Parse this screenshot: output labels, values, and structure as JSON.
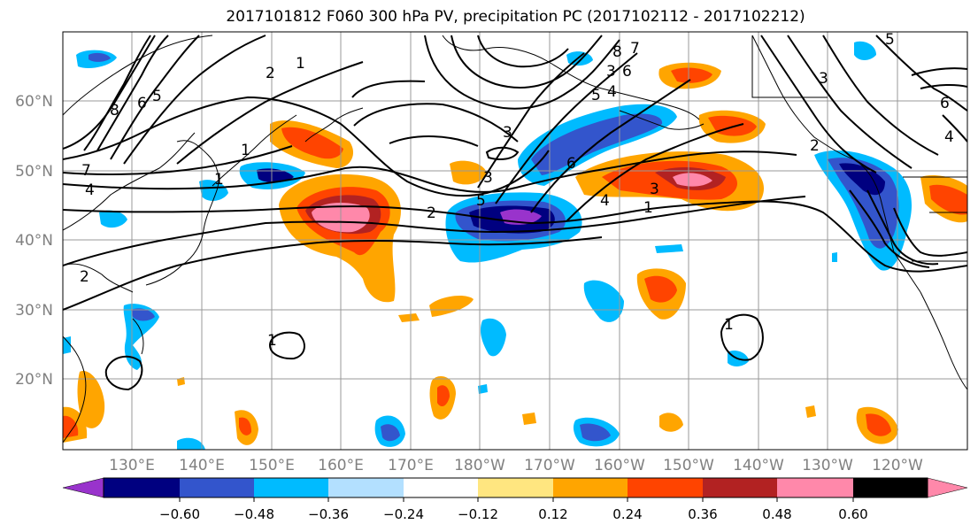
{
  "title": "2017101812 F060 300 hPa PV, precipitation PC (2017102112 - 2017102212)",
  "lat_labels": [
    "60°N",
    "50°N",
    "40°N",
    "30°N",
    "20°N"
  ],
  "lon_labels": [
    "130°E",
    "140°E",
    "150°E",
    "160°E",
    "170°E",
    "180°W",
    "170°W",
    "160°W",
    "150°W",
    "140°W",
    "130°W",
    "120°W"
  ],
  "colorbar": {
    "tick_labels": [
      "−0.60",
      "−0.48",
      "−0.36",
      "−0.24",
      "−0.12",
      "0.12",
      "0.24",
      "0.36",
      "0.48",
      "0.60"
    ],
    "colors": [
      "#9933cc",
      "#000080",
      "#3355cc",
      "#00bbff",
      "#b3e0ff",
      "#ffffff",
      "#ffe680",
      "#ffa500",
      "#ff4400",
      "#b22222",
      "#ff88aa"
    ]
  },
  "contour_labels": [
    "1",
    "2",
    "1",
    "8",
    "6",
    "5",
    "7",
    "4",
    "1",
    "2",
    "7",
    "8",
    "3",
    "6",
    "5",
    "4",
    "3",
    "3",
    "5",
    "2",
    "6",
    "4",
    "3",
    "1",
    "1",
    "1",
    "3",
    "6",
    "4",
    "5",
    "2"
  ]
}
